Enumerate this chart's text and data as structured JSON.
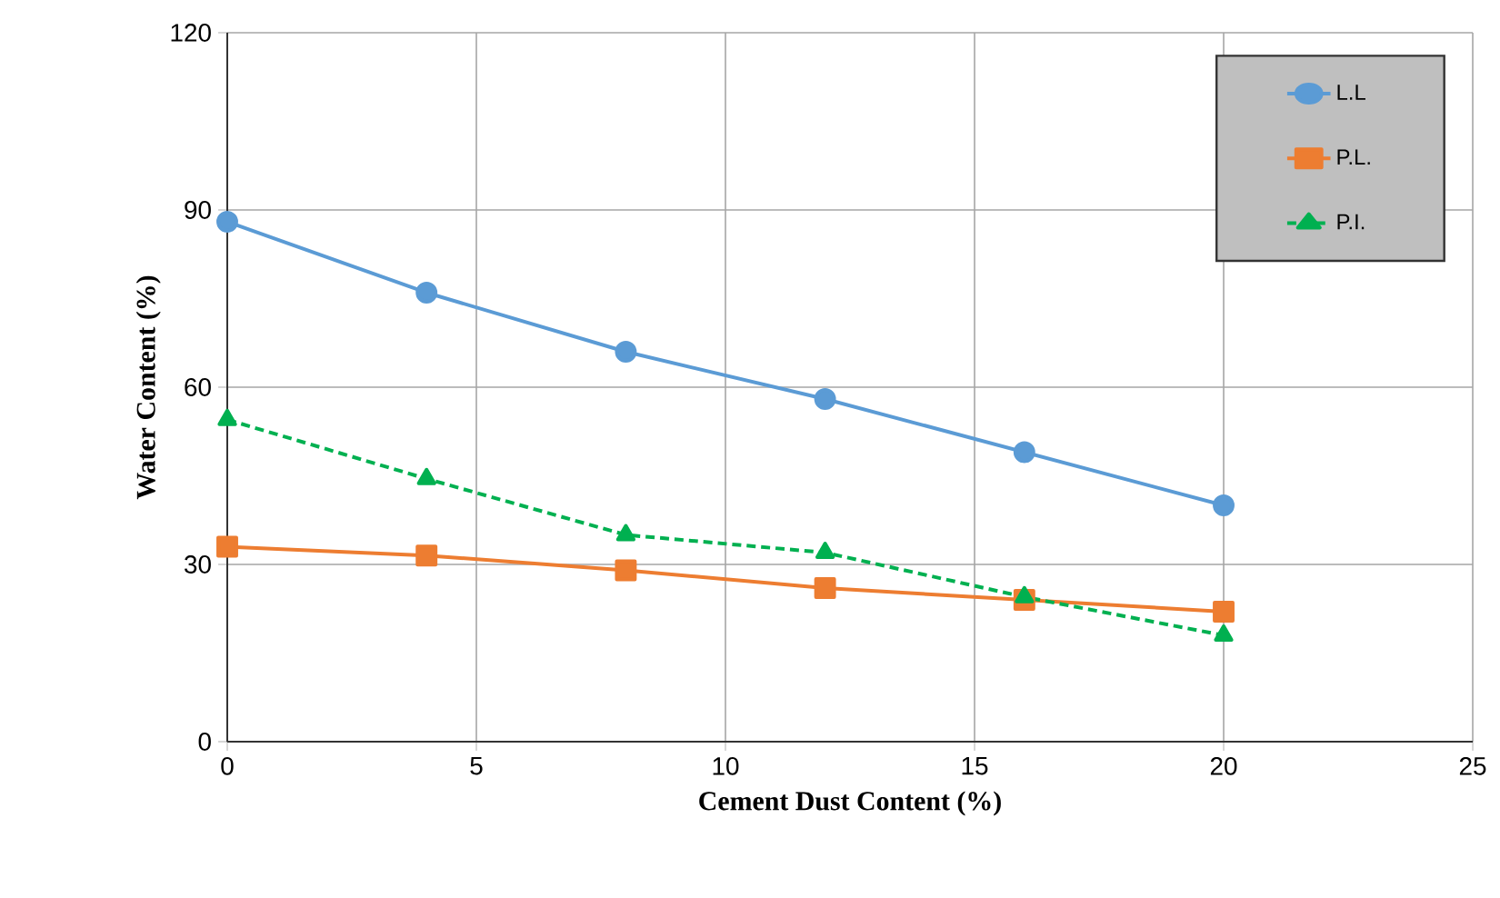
{
  "chart_data": {
    "type": "line",
    "xlabel": "Cement Dust Content (%)",
    "ylabel": "Water Content (%)",
    "x": [
      0,
      4,
      8,
      12,
      16,
      20
    ],
    "series": [
      {
        "name": "L.L",
        "color": "#5b9bd5",
        "marker": "circle",
        "line_style": "solid",
        "values": [
          88,
          76,
          66,
          58,
          49,
          40
        ]
      },
      {
        "name": "P.L.",
        "color": "#ed7d31",
        "marker": "square",
        "line_style": "solid",
        "values": [
          33,
          31.5,
          29,
          26,
          24,
          22
        ]
      },
      {
        "name": "P.I.",
        "color": "#00b050",
        "marker": "triangle",
        "line_style": "dashed",
        "values": [
          54.5,
          44.5,
          35,
          32,
          24.5,
          18
        ]
      }
    ],
    "xlim": [
      0,
      25
    ],
    "ylim": [
      0,
      120
    ],
    "xticks": [
      0,
      5,
      10,
      15,
      20,
      25
    ],
    "yticks": [
      0,
      30,
      60,
      90,
      120
    ],
    "grid": true,
    "legend": "top right"
  }
}
